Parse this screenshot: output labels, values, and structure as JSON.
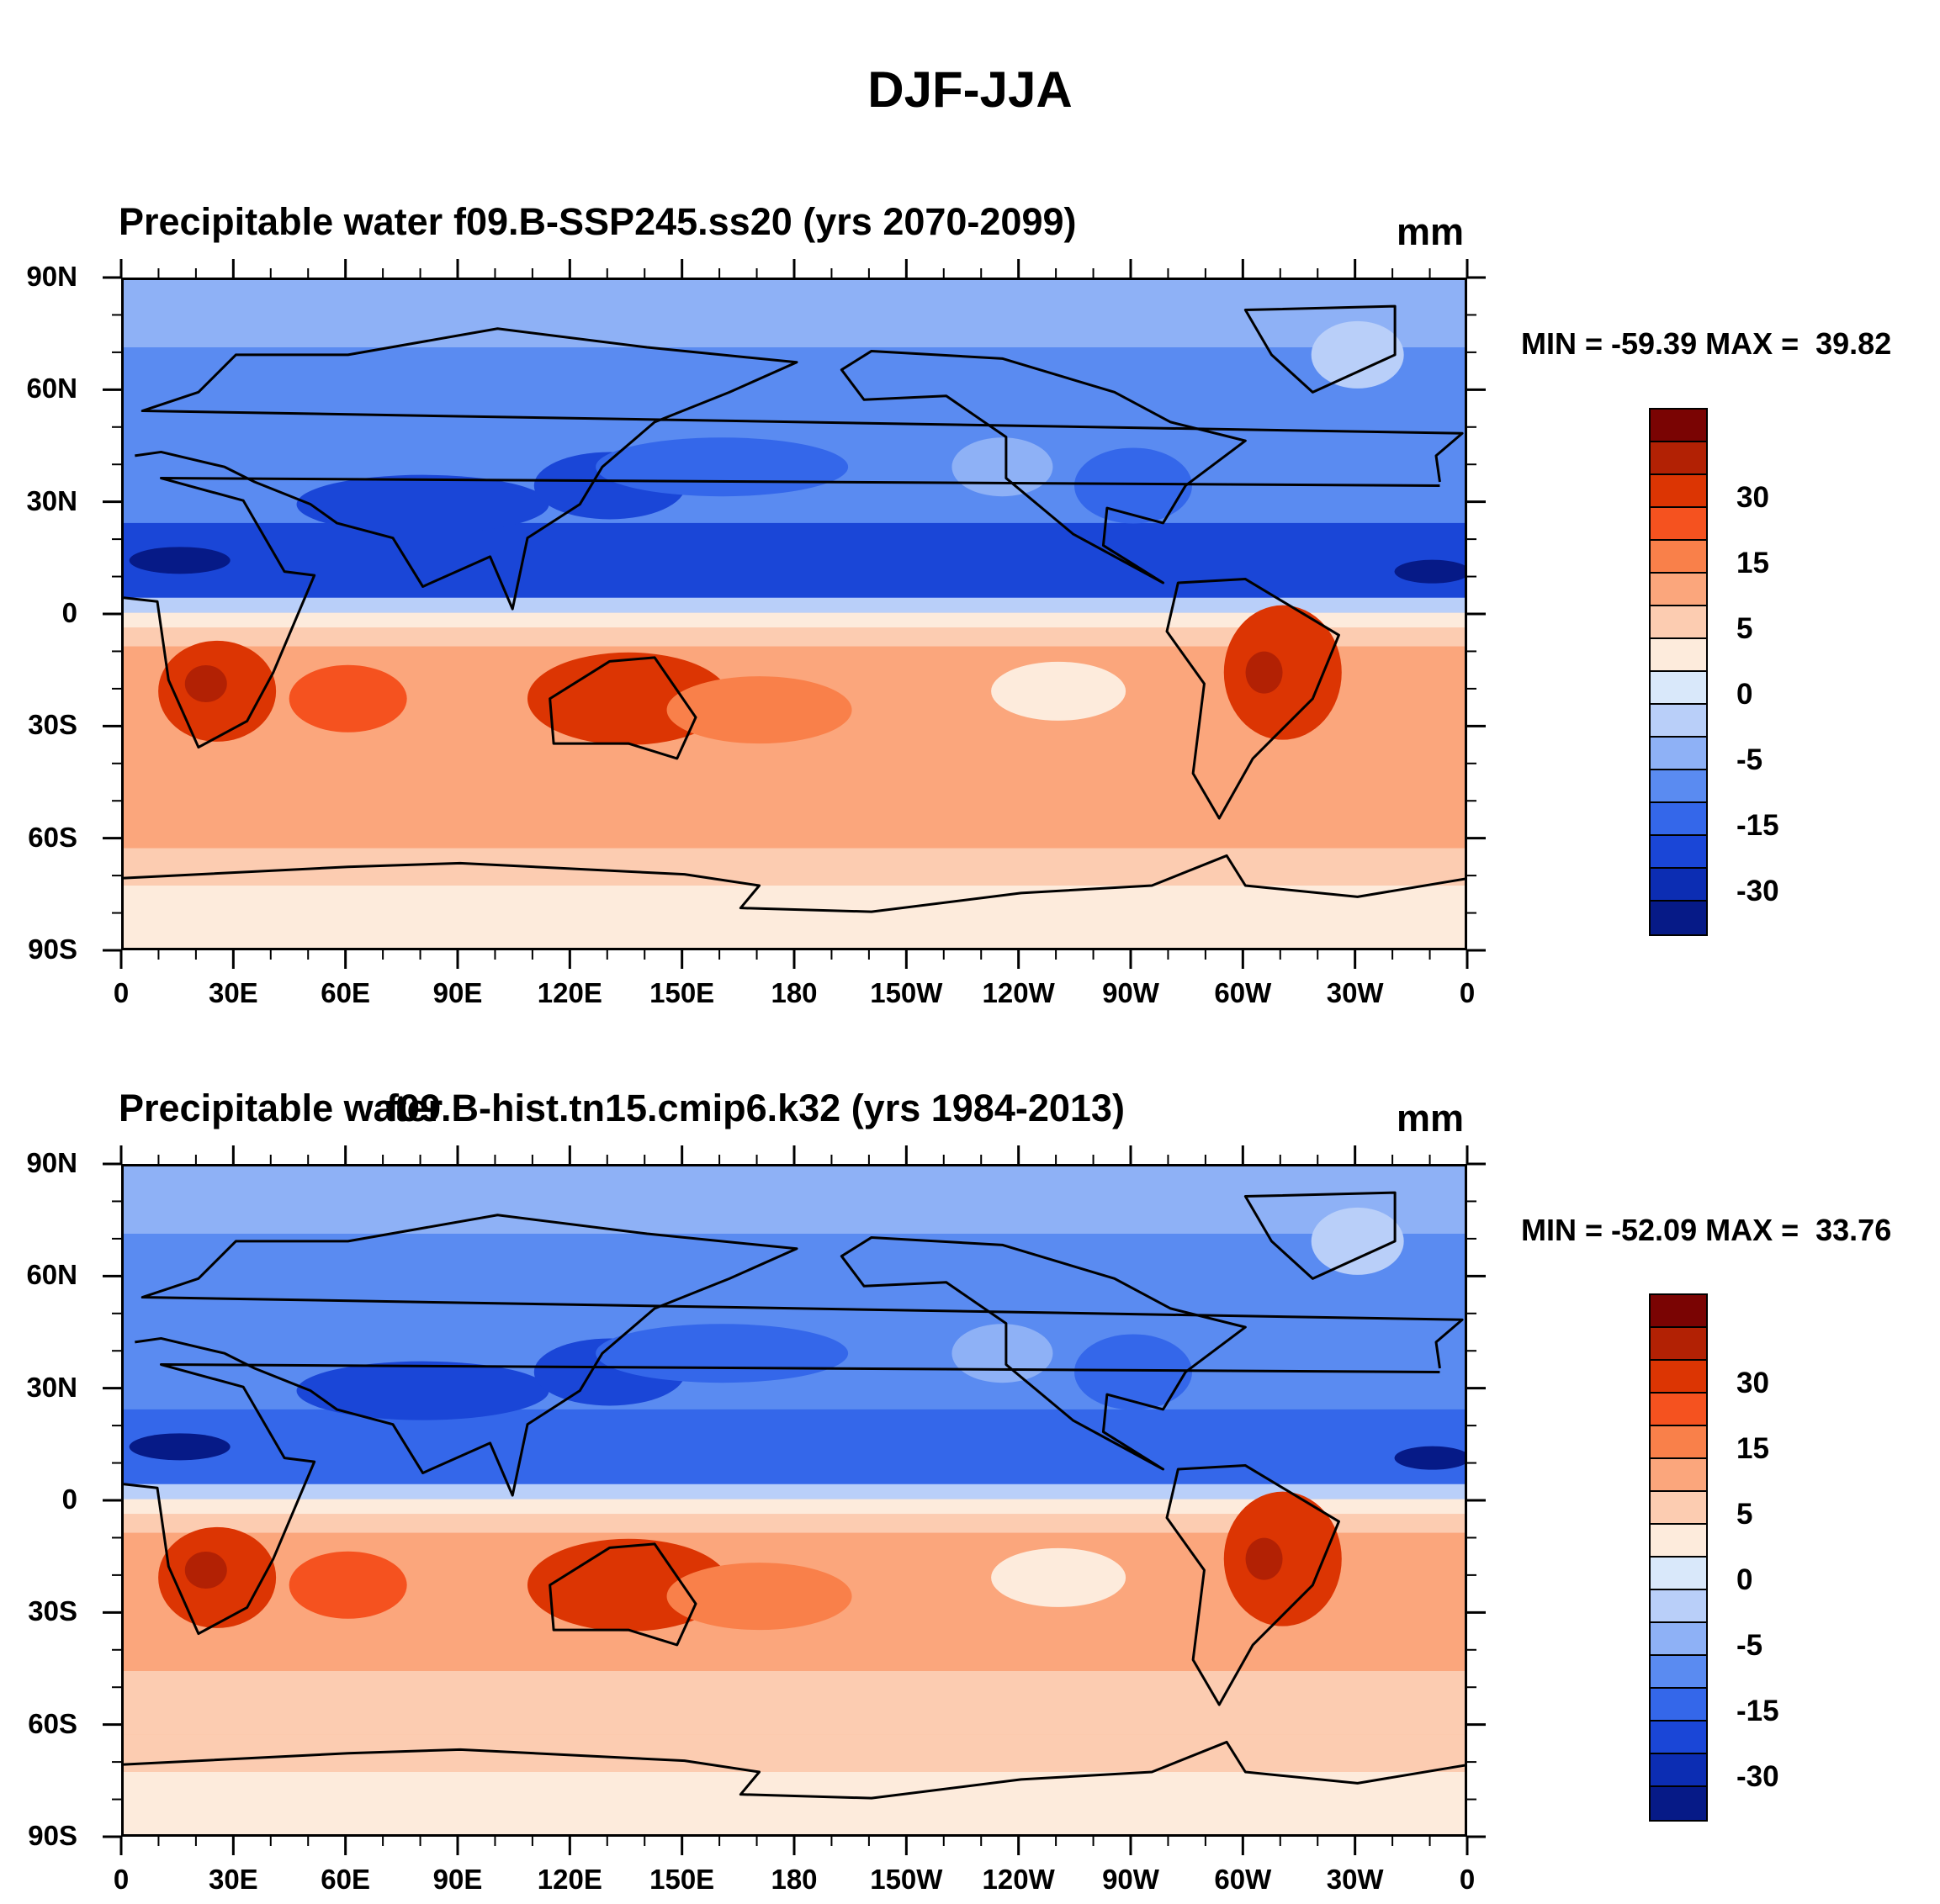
{
  "title": "DJF-JJA",
  "chart_data": [
    {
      "type": "heatmap",
      "name": "panel-top",
      "title_left": "Precipitable water",
      "title_right": "f09.B-SSP245.ss20 (yrs 2070-2099)",
      "units": "mm",
      "min_max_text": "MIN = -59.39 MAX =  39.82",
      "min": -59.39,
      "max": 39.82,
      "xlim": [
        0,
        360
      ],
      "ylim": [
        -90,
        90
      ],
      "x_ticks": [
        "0",
        "30E",
        "60E",
        "90E",
        "120E",
        "150E",
        "180",
        "150W",
        "120W",
        "90W",
        "60W",
        "30W",
        "0"
      ],
      "y_ticks": [
        "90N",
        "60N",
        "30N",
        "0",
        "30S",
        "60S",
        "90S"
      ],
      "colorbar_labels": [
        "30",
        "15",
        "5",
        "0",
        "-5",
        "-15",
        "-30"
      ]
    },
    {
      "type": "heatmap",
      "name": "panel-bottom",
      "title_left": "Precipitable water",
      "title_right": "f09.B-hist.tn15.cmip6.k32 (yrs 1984-2013)",
      "units": "mm",
      "min_max_text": "MIN = -52.09 MAX =  33.76",
      "min": -52.09,
      "max": 33.76,
      "xlim": [
        0,
        360
      ],
      "ylim": [
        -90,
        90
      ],
      "x_ticks": [
        "0",
        "30E",
        "60E",
        "90E",
        "120E",
        "150E",
        "180",
        "150W",
        "120W",
        "90W",
        "60W",
        "30W",
        "0"
      ],
      "y_ticks": [
        "90N",
        "60N",
        "30N",
        "0",
        "30S",
        "60S",
        "90S"
      ],
      "colorbar_labels": [
        "30",
        "15",
        "5",
        "0",
        "-5",
        "-15",
        "-30"
      ]
    }
  ],
  "colors": {
    "palette": [
      "#7a0403",
      "#b22104",
      "#dc3503",
      "#f5521f",
      "#f9804a",
      "#fba67c",
      "#fcccb1",
      "#fdebdc",
      "#d9e8fa",
      "#b9cff9",
      "#8eb1f6",
      "#5a8bf1",
      "#3467ea",
      "#1a46d7",
      "#0c2db3",
      "#061a87"
    ]
  },
  "colorbar_all_labels": [
    "30",
    "15",
    "5",
    "0",
    "-5",
    "-15",
    "-30"
  ]
}
